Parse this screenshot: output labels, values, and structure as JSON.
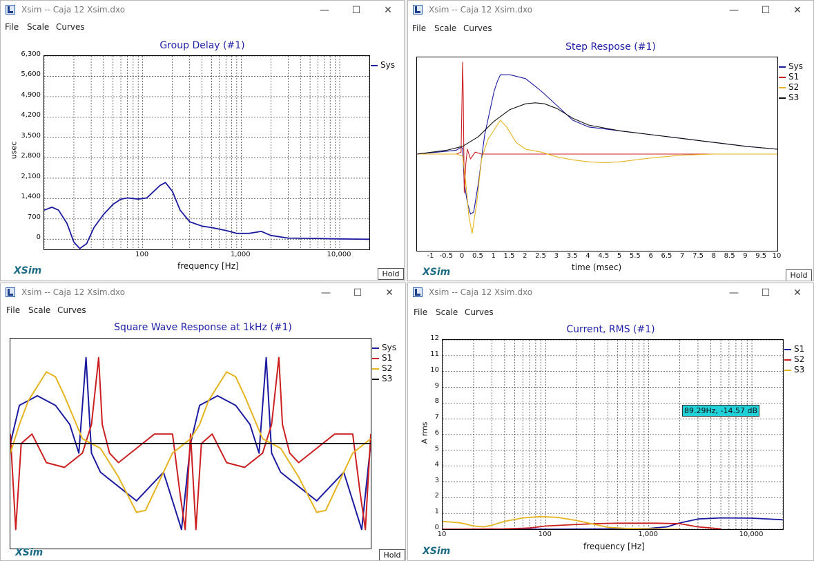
{
  "colors": {
    "sys": "#1a1aa0",
    "s1": "#cc1f1f",
    "s2": "#e6b31e",
    "s3": "#111111",
    "brand": "#1b6b87",
    "title": "#2222aa",
    "readout": "#1fd1d9"
  },
  "window_controls": {
    "minimize": "—",
    "maximize": "☐",
    "close": "✕"
  },
  "menus": [
    "File",
    "Scale",
    "Curves"
  ],
  "brand": "XSim",
  "hold_label": "Hold",
  "windows": [
    {
      "title": "Xsim -- Caja 12 Xsim.dxo",
      "chart_title": "Group Delay (#1)",
      "xlabel": "frequency [Hz]",
      "ylabel": "usec",
      "yticks": [
        "6,300",
        "5,600",
        "4,900",
        "4,200",
        "3,500",
        "2,800",
        "2,100",
        "1,400",
        "700",
        "0"
      ],
      "xticks": [
        "100",
        "1,000",
        "10,000"
      ],
      "legend": [
        {
          "name": "Sys",
          "color": "#1a1aa0"
        }
      ]
    },
    {
      "title": "Xsim -- Caja 12 Xsim.dxo",
      "chart_title": "Step Respose (#1)",
      "xlabel": "time (msec)",
      "ylabel": "",
      "yticks": [],
      "xticks": [
        "-1",
        "-0.5",
        "0",
        "0.5",
        "1",
        "1.5",
        "2",
        "2.5",
        "3",
        "3.5",
        "4",
        "4.5",
        "5",
        "5.5",
        "6",
        "6.5",
        "7",
        "7.5",
        "8",
        "8.5",
        "9",
        "9.5",
        "10"
      ],
      "legend": [
        {
          "name": "Sys",
          "color": "#1a1aa0"
        },
        {
          "name": "S1",
          "color": "#cc1f1f"
        },
        {
          "name": "S2",
          "color": "#e6b31e"
        },
        {
          "name": "S3",
          "color": "#111111"
        }
      ]
    },
    {
      "title": "Xsim -- Caja 12 Xsim.dxo",
      "chart_title": "Square Wave Response at 1kHz (#1)",
      "xlabel": "",
      "ylabel": "",
      "yticks": [],
      "xticks": [],
      "legend": [
        {
          "name": "Sys",
          "color": "#1a1aa0"
        },
        {
          "name": "S1",
          "color": "#cc1f1f"
        },
        {
          "name": "S2",
          "color": "#e6b31e"
        },
        {
          "name": "S3",
          "color": "#111111"
        }
      ]
    },
    {
      "title": "Xsim -- Caja 12 Xsim.dxo",
      "chart_title": "Current, RMS (#1)",
      "xlabel": "frequency [Hz]",
      "ylabel": "A rms",
      "yticks": [
        "12",
        "11",
        "10",
        "9",
        "8",
        "7",
        "6",
        "5",
        "4",
        "3",
        "2",
        "1",
        "0"
      ],
      "xticks": [
        "10",
        "100",
        "1,000",
        "10,000"
      ],
      "legend": [
        {
          "name": "S1",
          "color": "#1a1aa0"
        },
        {
          "name": "S2",
          "color": "#cc1f1f"
        },
        {
          "name": "S3",
          "color": "#e6b31e"
        }
      ],
      "readout": "89.29Hz, -14.57 dB"
    }
  ],
  "chart_data": [
    {
      "type": "line",
      "title": "Group Delay (#1)",
      "xlabel": "frequency [Hz]",
      "ylabel": "usec",
      "xscale": "log",
      "xlim": [
        10,
        20000
      ],
      "ylim": [
        -350,
        6300
      ],
      "grid": true,
      "legend_placement": "right",
      "series": [
        {
          "name": "Sys",
          "color": "#1a1aa0",
          "x": [
            10,
            12,
            14,
            17,
            20,
            23,
            27,
            32,
            40,
            50,
            60,
            70,
            90,
            110,
            130,
            150,
            170,
            200,
            240,
            300,
            400,
            500,
            700,
            900,
            1200,
            1600,
            2000,
            3000,
            5000,
            10000,
            20000
          ],
          "y": [
            1000,
            1100,
            1000,
            550,
            -100,
            -320,
            -150,
            400,
            850,
            1200,
            1380,
            1420,
            1380,
            1420,
            1650,
            1850,
            1950,
            1650,
            1000,
            600,
            450,
            400,
            300,
            200,
            200,
            270,
            130,
            40,
            30,
            10,
            0
          ]
        }
      ]
    },
    {
      "type": "line",
      "title": "Step Respose (#1)",
      "xlabel": "time (msec)",
      "xlim": [
        -1.45,
        10
      ],
      "ylim": [
        -1,
        1
      ],
      "grid": false,
      "legend_placement": "right",
      "series": [
        {
          "name": "Sys",
          "color": "#1a1aa0",
          "x": [
            -1.45,
            -0.8,
            -0.2,
            -0.05,
            0,
            0.05,
            0.15,
            0.25,
            0.35,
            0.5,
            0.7,
            0.9,
            1.0,
            1.1,
            1.2,
            1.5,
            2.0,
            2.5,
            3.0,
            3.5,
            4.0,
            4.5,
            5,
            6,
            7,
            8,
            9,
            10
          ],
          "y": [
            0.0,
            0.02,
            0.04,
            0.07,
            0.06,
            -0.3,
            -0.5,
            -0.62,
            -0.6,
            -0.3,
            0.2,
            0.5,
            0.65,
            0.75,
            0.82,
            0.82,
            0.78,
            0.65,
            0.5,
            0.35,
            0.28,
            0.26,
            0.24,
            0.2,
            0.16,
            0.12,
            0.08,
            0.05
          ]
        },
        {
          "name": "S1",
          "color": "#cc1f1f",
          "x": [
            -1.45,
            -0.2,
            -0.05,
            0,
            0.02,
            0.05,
            0.1,
            0.15,
            0.25,
            0.4,
            0.6,
            1.0,
            2,
            4,
            6,
            8,
            10
          ],
          "y": [
            0,
            0,
            0.02,
            0.95,
            0.6,
            -0.4,
            -0.1,
            0.05,
            -0.05,
            0.02,
            0,
            0,
            0,
            0,
            0,
            0,
            0
          ]
        },
        {
          "name": "S2",
          "color": "#e6b31e",
          "x": [
            -1.45,
            -0.2,
            0,
            0.1,
            0.2,
            0.3,
            0.45,
            0.6,
            0.8,
            1.0,
            1.2,
            1.4,
            1.7,
            2.0,
            2.5,
            3.0,
            3.5,
            4.0,
            4.5,
            5.0,
            6.0,
            7.0,
            8.0,
            10
          ],
          "y": [
            0,
            0,
            -0.02,
            -0.3,
            -0.65,
            -0.82,
            -0.5,
            -0.05,
            0.15,
            0.25,
            0.35,
            0.28,
            0.12,
            0.05,
            0.02,
            -0.03,
            -0.06,
            -0.08,
            -0.09,
            -0.08,
            -0.04,
            -0.01,
            0,
            0
          ]
        },
        {
          "name": "S3",
          "color": "#111111",
          "x": [
            -1.45,
            -0.5,
            0,
            0.5,
            1.0,
            1.5,
            2.0,
            2.3,
            2.6,
            3.0,
            3.5,
            4.0,
            5.0,
            6.0,
            7.0,
            8.0,
            9.0,
            10
          ],
          "y": [
            0,
            0.04,
            0.08,
            0.18,
            0.34,
            0.46,
            0.52,
            0.53,
            0.52,
            0.47,
            0.37,
            0.3,
            0.24,
            0.2,
            0.16,
            0.12,
            0.08,
            0.05
          ]
        }
      ]
    },
    {
      "type": "line",
      "title": "Square Wave Response at 1kHz (#1)",
      "xlim": [
        0,
        2
      ],
      "ylim": [
        -1.1,
        1.1
      ],
      "grid": false,
      "legend_placement": "right",
      "series": [
        {
          "name": "Sys",
          "color": "#1a1aa0",
          "x": [
            0,
            0.05,
            0.15,
            0.25,
            0.33,
            0.38,
            0.42,
            0.45,
            0.5,
            0.6,
            0.7,
            0.75,
            0.85,
            0.9,
            0.95,
            1.0,
            1.05,
            1.15,
            1.25,
            1.33,
            1.38,
            1.42,
            1.45,
            1.5,
            1.6,
            1.7,
            1.75,
            1.85,
            1.9,
            1.95,
            2.0
          ],
          "y": [
            0,
            0.4,
            0.5,
            0.4,
            0.2,
            -0.1,
            0.9,
            -0.1,
            -0.3,
            -0.45,
            -0.6,
            -0.5,
            -0.3,
            -0.6,
            -0.9,
            0,
            0.4,
            0.5,
            0.4,
            0.2,
            -0.1,
            0.9,
            -0.1,
            -0.3,
            -0.45,
            -0.6,
            -0.5,
            -0.3,
            -0.6,
            -0.9,
            0
          ]
        },
        {
          "name": "S1",
          "color": "#cc1f1f",
          "x": [
            0,
            0.03,
            0.06,
            0.12,
            0.2,
            0.3,
            0.4,
            0.45,
            0.49,
            0.51,
            0.55,
            0.6,
            0.7,
            0.8,
            0.9,
            0.94,
            0.97,
            1.0,
            1.03,
            1.06,
            1.12,
            1.2,
            1.3,
            1.4,
            1.45,
            1.49,
            1.51,
            1.55,
            1.6,
            1.7,
            1.8,
            1.9,
            1.94,
            1.97,
            2.0
          ],
          "y": [
            0.1,
            -0.9,
            0,
            0.1,
            -0.2,
            -0.25,
            -0.1,
            0.2,
            0.9,
            0.2,
            -0.1,
            -0.2,
            -0.05,
            0.1,
            0.1,
            -0.5,
            -0.9,
            0.1,
            -0.9,
            0,
            0.1,
            -0.2,
            -0.25,
            -0.1,
            0.2,
            0.9,
            0.2,
            -0.1,
            -0.2,
            -0.05,
            0.1,
            0.1,
            -0.5,
            -0.9,
            0.1
          ]
        },
        {
          "name": "S2",
          "color": "#e6b31e",
          "x": [
            0,
            0.05,
            0.1,
            0.2,
            0.25,
            0.3,
            0.4,
            0.5,
            0.6,
            0.7,
            0.75,
            0.8,
            0.9,
            1.0,
            1.05,
            1.1,
            1.2,
            1.25,
            1.3,
            1.4,
            1.5,
            1.6,
            1.7,
            1.75,
            1.8,
            1.9,
            2.0
          ],
          "y": [
            -0.1,
            0.2,
            0.45,
            0.75,
            0.7,
            0.5,
            0.05,
            -0.05,
            -0.35,
            -0.72,
            -0.7,
            -0.5,
            -0.1,
            0.05,
            0.2,
            0.45,
            0.75,
            0.7,
            0.5,
            0.05,
            -0.05,
            -0.35,
            -0.72,
            -0.7,
            -0.5,
            -0.1,
            0.05
          ]
        },
        {
          "name": "S3",
          "color": "#111111",
          "x": [
            0,
            2
          ],
          "y": [
            0,
            0
          ]
        }
      ]
    },
    {
      "type": "line",
      "title": "Current, RMS (#1)",
      "xlabel": "frequency [Hz]",
      "ylabel": "A rms",
      "xscale": "log",
      "xlim": [
        10,
        20000
      ],
      "ylim": [
        0,
        12
      ],
      "grid": true,
      "legend_placement": "right",
      "series": [
        {
          "name": "S1",
          "color": "#1a1aa0",
          "x": [
            10,
            100,
            500,
            1000,
            1500,
            2000,
            3000,
            5000,
            10000,
            20000
          ],
          "y": [
            0,
            0,
            0.02,
            0.05,
            0.15,
            0.4,
            0.65,
            0.72,
            0.7,
            0.6
          ]
        },
        {
          "name": "S2",
          "color": "#cc1f1f",
          "x": [
            10,
            40,
            70,
            100,
            200,
            300,
            500,
            800,
            1200,
            2000,
            3000,
            5000
          ],
          "y": [
            0,
            0.02,
            0.08,
            0.2,
            0.3,
            0.35,
            0.38,
            0.38,
            0.38,
            0.35,
            0.15,
            0.02
          ]
        },
        {
          "name": "S3",
          "color": "#e6b31e",
          "x": [
            10,
            15,
            20,
            25,
            30,
            40,
            60,
            90,
            130,
            200,
            300,
            400,
            600,
            1000,
            2000
          ],
          "y": [
            0.5,
            0.4,
            0.2,
            0.15,
            0.25,
            0.5,
            0.72,
            0.8,
            0.75,
            0.55,
            0.3,
            0.12,
            0.05,
            0.02,
            0
          ]
        }
      ]
    }
  ]
}
